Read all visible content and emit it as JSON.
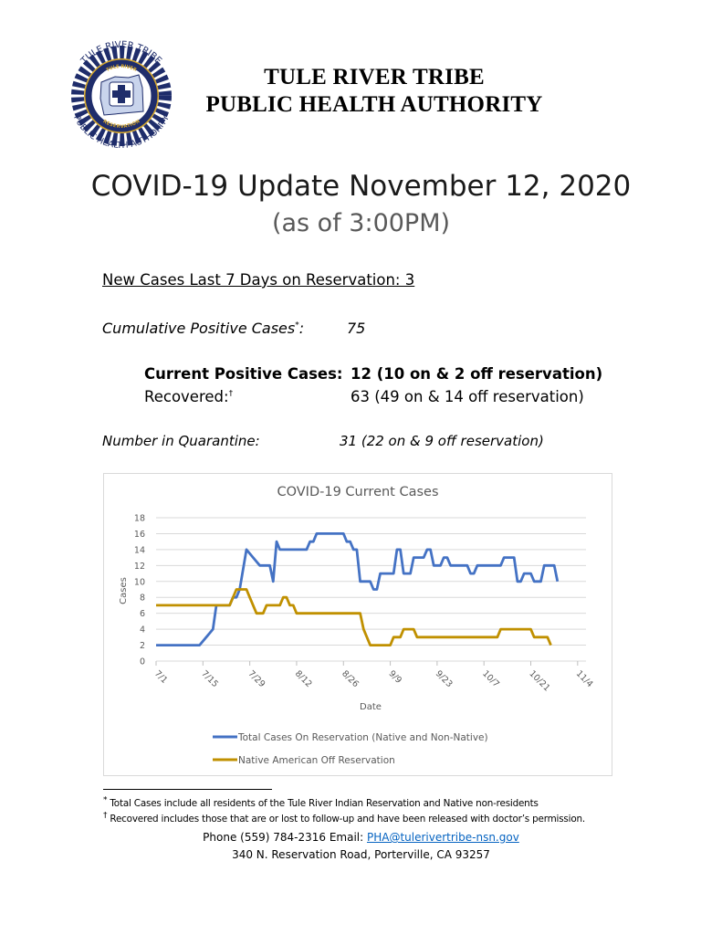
{
  "header": {
    "org_line1": "TULE RIVER TRIBE",
    "org_line2": "PUBLIC HEALTH AUTHORITY",
    "logo": {
      "ring_text_top": "TULE RIVER TRIBE",
      "ring_text_bottom": "PUBLIC HEALTH AUTHORITY",
      "inner_top": "TULE RIVER",
      "inner_bottom": "RESERVATION",
      "left_year": "18",
      "right_year": "73",
      "colors": {
        "ring": "#1f2d6b",
        "gold": "#d4a62a",
        "land": "#c9d4ec"
      }
    }
  },
  "title": "COVID-19 Update November 12, 2020",
  "subtitle": "(as of 3:00PM)",
  "stats": {
    "new_cases": "New Cases Last 7 Days on Reservation: 3",
    "cumulative_label": "Cumulative Positive Cases",
    "cumulative_mark": "*",
    "cumulative_colon": ":",
    "cumulative_value": "75",
    "current_label": "Current Positive Cases:",
    "current_value": "12 (10 on & 2 off reservation)",
    "recovered_label": "Recovered:",
    "recovered_mark": "†",
    "recovered_value": "63 (49 on & 14 off reservation)",
    "quarantine_label": "Number in Quarantine:",
    "quarantine_value": "31 (22 on & 9 off reservation)"
  },
  "chart_data": {
    "type": "line",
    "title": "COVID-19 Current Cases",
    "xlabel": "Date",
    "ylabel": "Cases",
    "ylim": [
      0,
      18
    ],
    "yticks": [
      0,
      2,
      4,
      6,
      8,
      10,
      12,
      14,
      16,
      18
    ],
    "xtick_labels": [
      "7/1",
      "7/15",
      "7/29",
      "8/12",
      "8/26",
      "9/9",
      "9/23",
      "10/7",
      "10/21",
      "11/4"
    ],
    "x_start": "7/1",
    "x_end": "11/12",
    "grid": true,
    "legend_position": "bottom",
    "series": [
      {
        "name": "Total Cases On Reservation (Native and Non-Native)",
        "color": "#4472c4",
        "points": [
          [
            0,
            2
          ],
          [
            8,
            2
          ],
          [
            13,
            2
          ],
          [
            15,
            3
          ],
          [
            17,
            4
          ],
          [
            18,
            7
          ],
          [
            20,
            7
          ],
          [
            22,
            7
          ],
          [
            23,
            8
          ],
          [
            24,
            8
          ],
          [
            25,
            9
          ],
          [
            27,
            14
          ],
          [
            29,
            13
          ],
          [
            31,
            12
          ],
          [
            33,
            12
          ],
          [
            34,
            12
          ],
          [
            35,
            10
          ],
          [
            36,
            15
          ],
          [
            37,
            14
          ],
          [
            40,
            14
          ],
          [
            45,
            14
          ],
          [
            46,
            15
          ],
          [
            47,
            15
          ],
          [
            48,
            16
          ],
          [
            50,
            16
          ],
          [
            56,
            16
          ],
          [
            57,
            15
          ],
          [
            58,
            15
          ],
          [
            59,
            14
          ],
          [
            60,
            14
          ],
          [
            61,
            10
          ],
          [
            63,
            10
          ],
          [
            64,
            10
          ],
          [
            65,
            9
          ],
          [
            66,
            9
          ],
          [
            67,
            11
          ],
          [
            69,
            11
          ],
          [
            71,
            11
          ],
          [
            72,
            14
          ],
          [
            73,
            14
          ],
          [
            74,
            11
          ],
          [
            76,
            11
          ],
          [
            77,
            13
          ],
          [
            78,
            13
          ],
          [
            80,
            13
          ],
          [
            81,
            14
          ],
          [
            82,
            14
          ],
          [
            83,
            12
          ],
          [
            85,
            12
          ],
          [
            86,
            13
          ],
          [
            87,
            13
          ],
          [
            88,
            12
          ],
          [
            93,
            12
          ],
          [
            94,
            11
          ],
          [
            95,
            11
          ],
          [
            96,
            12
          ],
          [
            99,
            12
          ],
          [
            103,
            12
          ],
          [
            104,
            13
          ],
          [
            107,
            13
          ],
          [
            108,
            10
          ],
          [
            109,
            10
          ],
          [
            110,
            11
          ],
          [
            112,
            11
          ],
          [
            113,
            10
          ],
          [
            115,
            10
          ],
          [
            116,
            12
          ],
          [
            119,
            12
          ],
          [
            120,
            10
          ]
        ]
      },
      {
        "name": "Native American Off Reservation",
        "color": "#c09000",
        "points": [
          [
            0,
            7
          ],
          [
            21,
            7
          ],
          [
            22,
            7
          ],
          [
            23,
            8
          ],
          [
            24,
            9
          ],
          [
            26,
            9
          ],
          [
            27,
            9
          ],
          [
            28,
            8
          ],
          [
            30,
            6
          ],
          [
            32,
            6
          ],
          [
            33,
            7
          ],
          [
            36,
            7
          ],
          [
            37,
            7
          ],
          [
            38,
            8
          ],
          [
            39,
            8
          ],
          [
            40,
            7
          ],
          [
            41,
            7
          ],
          [
            42,
            6
          ],
          [
            47,
            6
          ],
          [
            57,
            6
          ],
          [
            61,
            6
          ],
          [
            62,
            4
          ],
          [
            64,
            2
          ],
          [
            70,
            2
          ],
          [
            71,
            3
          ],
          [
            73,
            3
          ],
          [
            74,
            4
          ],
          [
            77,
            4
          ],
          [
            78,
            3
          ],
          [
            88,
            3
          ],
          [
            102,
            3
          ],
          [
            103,
            4
          ],
          [
            112,
            4
          ],
          [
            113,
            3
          ],
          [
            116,
            3
          ],
          [
            117,
            3
          ],
          [
            118,
            2
          ]
        ]
      }
    ]
  },
  "footnotes": {
    "note1_mark": "*",
    "note1": " Total Cases include all residents of the Tule River Indian Reservation and Native non-residents",
    "note2_mark": "†",
    "note2": " Recovered includes those that are or lost to follow-up and have been released with doctor’s permission."
  },
  "contact": {
    "phone_prefix": "Phone (559) 784-2316 Email: ",
    "email": "PHA@tulerivertribe-nsn.gov",
    "address": "340 N. Reservation Road, Porterville, CA 93257"
  }
}
